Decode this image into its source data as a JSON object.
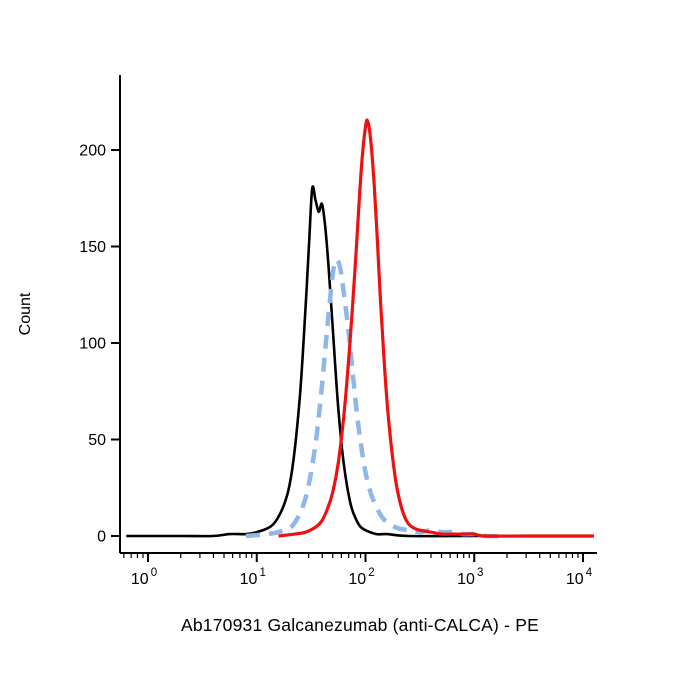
{
  "chart_data": {
    "type": "line",
    "subtype": "flow-cytometry-histogram",
    "title": "",
    "xlabel": "Ab170931 Galcanezumab (anti-CALCA) - PE",
    "ylabel": "Count",
    "x_scale": "log10",
    "x_tick_base": "10",
    "x_ticks_exponents": [
      0,
      1,
      2,
      3,
      4
    ],
    "y_ticks": [
      0,
      50,
      100,
      150,
      200
    ],
    "ylim": [
      -9,
      238
    ],
    "xlim_log": [
      -0.26,
      4.13
    ],
    "grid": false,
    "legend": "none",
    "axis_color": "#000000",
    "background_color": "#ffffff",
    "series": [
      {
        "name": "black-solid-control",
        "color": "#000000",
        "style": "solid",
        "width": 2.6,
        "points": [
          [
            -0.2,
            0
          ],
          [
            0.3,
            0
          ],
          [
            0.6,
            0
          ],
          [
            0.75,
            1
          ],
          [
            0.9,
            1
          ],
          [
            1.0,
            2
          ],
          [
            1.1,
            4
          ],
          [
            1.15,
            6
          ],
          [
            1.2,
            10
          ],
          [
            1.25,
            16
          ],
          [
            1.3,
            26
          ],
          [
            1.35,
            45
          ],
          [
            1.4,
            75
          ],
          [
            1.44,
            110
          ],
          [
            1.48,
            150
          ],
          [
            1.51,
            180
          ],
          [
            1.54,
            174
          ],
          [
            1.57,
            168
          ],
          [
            1.6,
            172
          ],
          [
            1.63,
            160
          ],
          [
            1.66,
            140
          ],
          [
            1.69,
            115
          ],
          [
            1.72,
            90
          ],
          [
            1.75,
            66
          ],
          [
            1.79,
            42
          ],
          [
            1.83,
            26
          ],
          [
            1.87,
            15
          ],
          [
            1.91,
            9
          ],
          [
            1.95,
            5
          ],
          [
            2.0,
            3
          ],
          [
            2.1,
            1
          ],
          [
            2.2,
            1
          ],
          [
            2.4,
            0
          ],
          [
            3.0,
            0
          ],
          [
            4.1,
            0
          ]
        ]
      },
      {
        "name": "blue-dashed-control",
        "color": "#8fb8e8",
        "style": "dashed",
        "dash": [
          14,
          9
        ],
        "width": 4.5,
        "points": [
          [
            0.9,
            0
          ],
          [
            1.1,
            1
          ],
          [
            1.2,
            2
          ],
          [
            1.3,
            4
          ],
          [
            1.35,
            7
          ],
          [
            1.4,
            12
          ],
          [
            1.45,
            20
          ],
          [
            1.5,
            33
          ],
          [
            1.55,
            52
          ],
          [
            1.6,
            78
          ],
          [
            1.64,
            103
          ],
          [
            1.68,
            126
          ],
          [
            1.71,
            140
          ],
          [
            1.74,
            143
          ],
          [
            1.77,
            138
          ],
          [
            1.8,
            126
          ],
          [
            1.84,
            108
          ],
          [
            1.88,
            86
          ],
          [
            1.92,
            64
          ],
          [
            1.96,
            47
          ],
          [
            2.0,
            33
          ],
          [
            2.05,
            22
          ],
          [
            2.1,
            15
          ],
          [
            2.15,
            10
          ],
          [
            2.2,
            7
          ],
          [
            2.3,
            4
          ],
          [
            2.4,
            3
          ],
          [
            2.5,
            2
          ],
          [
            2.6,
            3
          ],
          [
            2.7,
            2
          ],
          [
            2.8,
            2
          ],
          [
            2.9,
            1
          ],
          [
            3.0,
            1
          ],
          [
            3.1,
            0
          ],
          [
            3.3,
            0
          ]
        ]
      },
      {
        "name": "red-solid-stained",
        "color": "#ee1111",
        "style": "solid",
        "width": 3.2,
        "points": [
          [
            1.2,
            0
          ],
          [
            1.35,
            1
          ],
          [
            1.45,
            2
          ],
          [
            1.55,
            5
          ],
          [
            1.6,
            8
          ],
          [
            1.65,
            14
          ],
          [
            1.7,
            23
          ],
          [
            1.75,
            38
          ],
          [
            1.8,
            62
          ],
          [
            1.85,
            95
          ],
          [
            1.9,
            135
          ],
          [
            1.94,
            172
          ],
          [
            1.97,
            196
          ],
          [
            2.0,
            212
          ],
          [
            2.02,
            215
          ],
          [
            2.05,
            204
          ],
          [
            2.08,
            182
          ],
          [
            2.11,
            152
          ],
          [
            2.14,
            120
          ],
          [
            2.17,
            92
          ],
          [
            2.2,
            68
          ],
          [
            2.24,
            45
          ],
          [
            2.28,
            28
          ],
          [
            2.32,
            17
          ],
          [
            2.36,
            10
          ],
          [
            2.4,
            6
          ],
          [
            2.45,
            4
          ],
          [
            2.5,
            3
          ],
          [
            2.6,
            2
          ],
          [
            2.7,
            1
          ],
          [
            2.8,
            1
          ],
          [
            2.9,
            1
          ],
          [
            3.0,
            1
          ],
          [
            3.1,
            0
          ],
          [
            3.5,
            0
          ],
          [
            4.1,
            0
          ]
        ]
      }
    ]
  }
}
